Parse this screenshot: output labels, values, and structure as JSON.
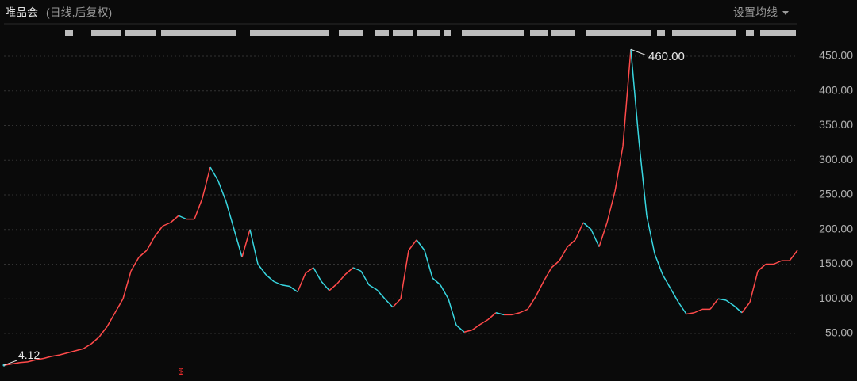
{
  "chart_data": {
    "type": "line",
    "title": "唯品会",
    "subtitle": "(日线,后复权)",
    "menu": "设置均线",
    "annotations": [
      {
        "text": "4.12",
        "value": 4.12
      },
      {
        "text": "460.00",
        "value": 460
      }
    ],
    "values": [
      4.12,
      6,
      8,
      9,
      12,
      14,
      17,
      19,
      22,
      25,
      28,
      35,
      45,
      60,
      80,
      100,
      140,
      160,
      170,
      190,
      205,
      210,
      220,
      215,
      215,
      245,
      290,
      270,
      240,
      200,
      160,
      200,
      150,
      135,
      125,
      120,
      118,
      110,
      137,
      145,
      125,
      112,
      122,
      135,
      145,
      140,
      120,
      113,
      100,
      88,
      100,
      170,
      185,
      170,
      130,
      120,
      100,
      62,
      52,
      55,
      63,
      70,
      80,
      77,
      77,
      80,
      85,
      103,
      125,
      145,
      155,
      175,
      185,
      210,
      200,
      175,
      210,
      255,
      320,
      460,
      330,
      220,
      165,
      135,
      115,
      95,
      78,
      80,
      85,
      85,
      100,
      98,
      90,
      80,
      95,
      140,
      150,
      150,
      155,
      155,
      170
    ],
    "up_color": "#ff4a4a",
    "down_color": "#38d6e0",
    "ylim": [
      0,
      470
    ],
    "yticks": [
      {
        "value": 50,
        "label": "50.00"
      },
      {
        "value": 100,
        "label": "100.00"
      },
      {
        "value": 150,
        "label": "150.00"
      },
      {
        "value": 200,
        "label": "200.00"
      },
      {
        "value": 250,
        "label": "250.00"
      },
      {
        "value": 300,
        "label": "300.00"
      },
      {
        "value": 350,
        "label": "350.00"
      },
      {
        "value": 400,
        "label": "400.00"
      },
      {
        "value": 450,
        "label": "450.00"
      }
    ],
    "grid": true
  }
}
